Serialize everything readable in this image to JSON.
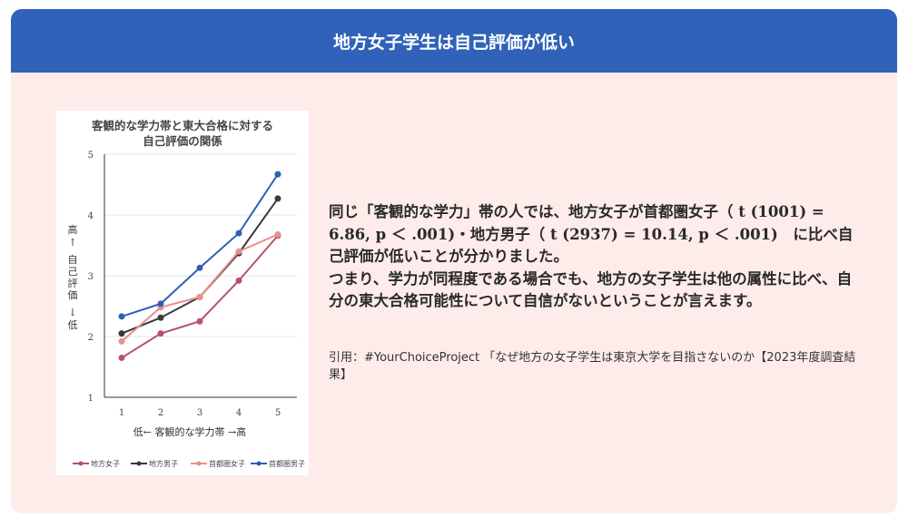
{
  "header": {
    "title": "地方女子学生は自己評価が低い"
  },
  "body": {
    "paragraph1": "同じ「客観的な学力」帯の人では、地方女子が首都圏女子（ t (1001) = 6.86, p ＜ .001)・地方男子（ t (2937) = 10.14, p ＜ .001)　に比べ自己評価が低いことが分かりました。",
    "paragraph2": "つまり、学力が同程度である場合でも、地方の女子学生は他の属性に比べ、自分の東大合格可能性について自信がないということが言えます。",
    "citation": "引用：#YourChoiceProject 「なぜ地方の女子学生は東京大学を目指さないのか【2023年度調査結果】"
  },
  "chart_data": {
    "type": "line",
    "title_line1": "客観的な学力帯と東大合格に対する",
    "title_line2": "自己評価の関係",
    "xlabel": "低←  客観的な学力帯  →高",
    "ylabel_top": "高",
    "ylabel_up": "↑",
    "ylabel_mid": "自己評価",
    "ylabel_down": "↓",
    "ylabel_bottom": "低",
    "x": [
      1,
      2,
      3,
      4,
      5
    ],
    "ylim": [
      1,
      5
    ],
    "yticks": [
      1,
      2,
      3,
      4,
      5
    ],
    "grid": true,
    "legend_position": "bottom",
    "series": [
      {
        "name": "地方女子",
        "color": "#b8506f",
        "values": [
          1.65,
          2.05,
          2.25,
          2.92,
          3.66
        ]
      },
      {
        "name": "地方男子",
        "color": "#3a3a3a",
        "values": [
          2.05,
          2.31,
          2.65,
          3.37,
          4.27
        ]
      },
      {
        "name": "首都圏女子",
        "color": "#e8908c",
        "values": [
          1.92,
          2.48,
          2.65,
          3.4,
          3.68
        ]
      },
      {
        "name": "首都圏男子",
        "color": "#2f5fb5",
        "values": [
          2.33,
          2.54,
          3.13,
          3.7,
          4.67
        ]
      }
    ]
  }
}
